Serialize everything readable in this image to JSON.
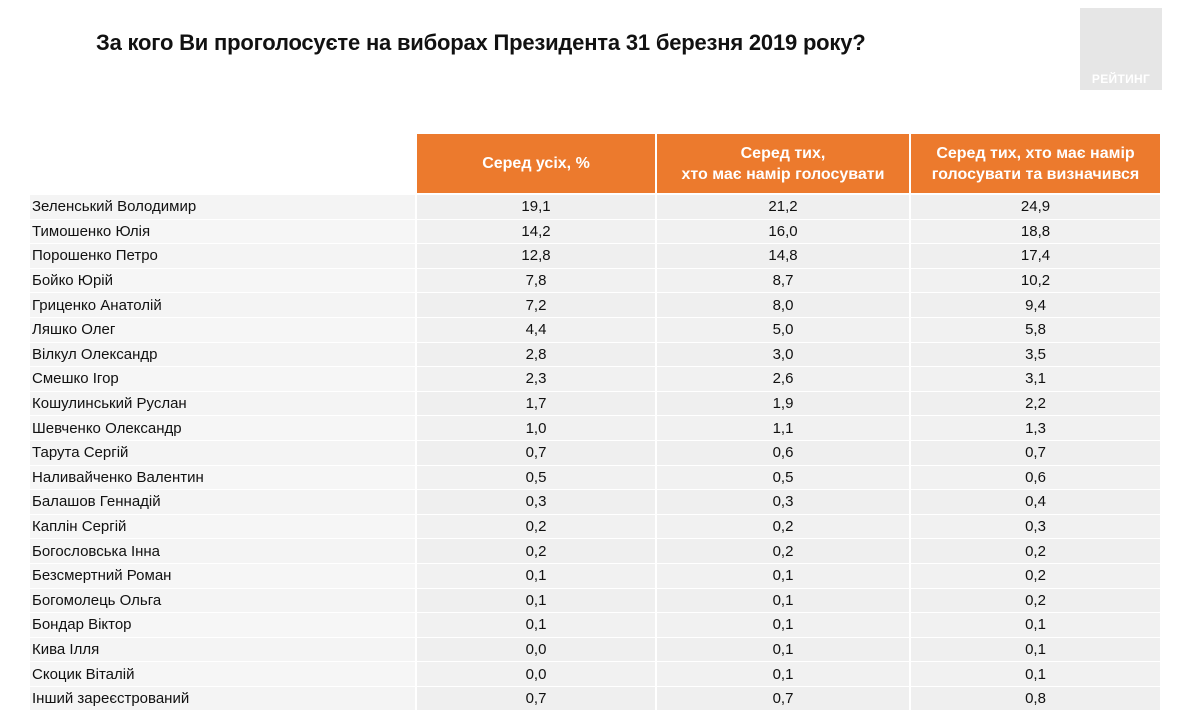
{
  "title": "За кого Ви проголосуєте на виборах Президента 31 березня 2019 року?",
  "logo": {
    "text": "РЕЙТИНГ",
    "color": "#e6e6e6"
  },
  "accent_color": "#ec7a2d",
  "table": {
    "headers": [
      "Серед усіх, %",
      "Серед тих,\nхто має намір голосувати",
      "Серед тих, хто має намір\nголосувати та визначився"
    ],
    "rows": [
      {
        "name": "Зеленський Володимир",
        "v1": "19,1",
        "v2": "21,2",
        "v3": "24,9"
      },
      {
        "name": "Тимошенко Юлія",
        "v1": "14,2",
        "v2": "16,0",
        "v3": "18,8"
      },
      {
        "name": "Порошенко Петро",
        "v1": "12,8",
        "v2": "14,8",
        "v3": "17,4"
      },
      {
        "name": "Бойко Юрій",
        "v1": "7,8",
        "v2": "8,7",
        "v3": "10,2"
      },
      {
        "name": "Гриценко Анатолій",
        "v1": "7,2",
        "v2": "8,0",
        "v3": "9,4"
      },
      {
        "name": "Ляшко Олег",
        "v1": "4,4",
        "v2": "5,0",
        "v3": "5,8"
      },
      {
        "name": "Вілкул Олександр",
        "v1": "2,8",
        "v2": "3,0",
        "v3": "3,5"
      },
      {
        "name": "Смешко Ігор",
        "v1": "2,3",
        "v2": "2,6",
        "v3": "3,1"
      },
      {
        "name": "Кошулинський Руслан",
        "v1": "1,7",
        "v2": "1,9",
        "v3": "2,2"
      },
      {
        "name": "Шевченко Олександр",
        "v1": "1,0",
        "v2": "1,1",
        "v3": "1,3"
      },
      {
        "name": "Тарута Сергій",
        "v1": "0,7",
        "v2": "0,6",
        "v3": "0,7"
      },
      {
        "name": "Наливайченко Валентин",
        "v1": "0,5",
        "v2": "0,5",
        "v3": "0,6"
      },
      {
        "name": "Балашов Геннадій",
        "v1": "0,3",
        "v2": "0,3",
        "v3": "0,4"
      },
      {
        "name": "Каплін Сергій",
        "v1": "0,2",
        "v2": "0,2",
        "v3": "0,3"
      },
      {
        "name": "Богословська Інна",
        "v1": "0,2",
        "v2": "0,2",
        "v3": "0,2"
      },
      {
        "name": "Безсмертний Роман",
        "v1": "0,1",
        "v2": "0,1",
        "v3": "0,2"
      },
      {
        "name": "Богомолець Ольга",
        "v1": "0,1",
        "v2": "0,1",
        "v3": "0,2"
      },
      {
        "name": "Бондар Віктор",
        "v1": "0,1",
        "v2": "0,1",
        "v3": "0,1"
      },
      {
        "name": "Кива Ілля",
        "v1": "0,0",
        "v2": "0,1",
        "v3": "0,1"
      },
      {
        "name": "Скоцик Віталій",
        "v1": "0,0",
        "v2": "0,1",
        "v3": "0,1"
      },
      {
        "name": "Інший зареєстрований",
        "v1": "0,7",
        "v2": "0,7",
        "v3": "0,8"
      }
    ]
  }
}
